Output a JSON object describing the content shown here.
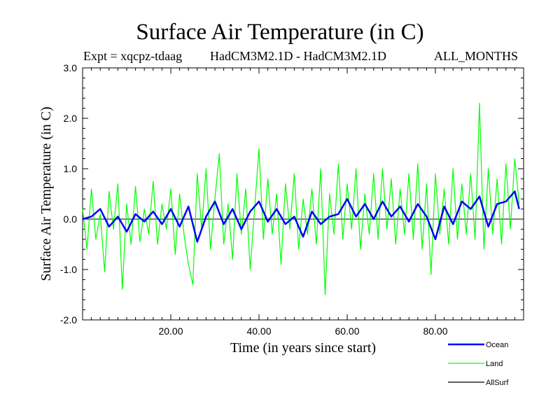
{
  "chart_data": {
    "type": "line",
    "title": "Surface Air Temperature (in C)",
    "subtitle_left": "Expt = xqcpz-tdaag",
    "subtitle_center": "HadCM3M2.1D - HadCM3M2.1D",
    "subtitle_right": "ALL_MONTHS",
    "xlabel": "Time (in years since start)",
    "ylabel": "Surface Air Temperature (in C)",
    "xlim": [
      0,
      100
    ],
    "ylim": [
      -2.0,
      3.0
    ],
    "xticks": [
      20,
      40,
      60,
      80
    ],
    "xtick_labels": [
      "20.00",
      "40.00",
      "60.00",
      "80.00"
    ],
    "yticks": [
      -2.0,
      -1.0,
      0.0,
      1.0,
      2.0,
      3.0
    ],
    "ytick_labels": [
      "-2.0",
      "-1.0",
      "0.0",
      "1.0",
      "2.0",
      "3.0"
    ],
    "zero_line": 0.0,
    "series": [
      {
        "name": "Land",
        "color": "#00ff00",
        "x": [
          0,
          1,
          2,
          3,
          4,
          5,
          6,
          7,
          8,
          9,
          10,
          11,
          12,
          13,
          14,
          15,
          16,
          17,
          18,
          19,
          20,
          21,
          22,
          23,
          24,
          25,
          26,
          27,
          28,
          29,
          30,
          31,
          32,
          33,
          34,
          35,
          36,
          37,
          38,
          39,
          40,
          41,
          42,
          43,
          44,
          45,
          46,
          47,
          48,
          49,
          50,
          51,
          52,
          53,
          54,
          55,
          56,
          57,
          58,
          59,
          60,
          61,
          62,
          63,
          64,
          65,
          66,
          67,
          68,
          69,
          70,
          71,
          72,
          73,
          74,
          75,
          76,
          77,
          78,
          79,
          80,
          81,
          82,
          83,
          84,
          85,
          86,
          87,
          88,
          89,
          90,
          91,
          92,
          93,
          94,
          95,
          96,
          97,
          98,
          99
        ],
        "values": [
          0.2,
          -0.6,
          0.6,
          -0.4,
          0.1,
          -1.05,
          0.55,
          -0.2,
          0.7,
          -1.4,
          0.3,
          -0.5,
          0.65,
          -0.45,
          0.2,
          -0.3,
          0.75,
          -0.5,
          0.3,
          -0.2,
          0.6,
          -0.7,
          0.5,
          -0.3,
          -0.9,
          -1.3,
          0.9,
          -0.2,
          1.0,
          -0.6,
          0.4,
          1.3,
          -0.5,
          0.3,
          -0.8,
          0.9,
          -0.3,
          0.6,
          -1.0,
          0.2,
          1.4,
          -0.4,
          0.8,
          -0.3,
          0.5,
          -0.9,
          0.7,
          -0.2,
          0.9,
          -0.6,
          0.4,
          -0.3,
          0.6,
          -0.5,
          1.0,
          -1.5,
          0.5,
          -0.3,
          1.1,
          -0.4,
          0.7,
          -0.2,
          1.0,
          -0.6,
          0.5,
          -0.3,
          0.9,
          -0.4,
          1.0,
          -0.2,
          0.8,
          -0.5,
          0.6,
          -0.3,
          0.9,
          -0.4,
          1.1,
          -0.6,
          0.7,
          -1.1,
          0.9,
          -0.3,
          0.6,
          -0.5,
          1.0,
          -0.4,
          0.7,
          -0.3,
          0.9,
          -0.4,
          2.3,
          -0.6,
          1.0,
          -0.3,
          0.8,
          -0.5,
          1.1,
          -0.2,
          1.2,
          0.3
        ]
      },
      {
        "name": "Ocean",
        "color": "#0000ff",
        "x": [
          0,
          2,
          4,
          6,
          8,
          10,
          12,
          14,
          16,
          18,
          20,
          22,
          24,
          26,
          28,
          30,
          32,
          34,
          36,
          38,
          40,
          42,
          44,
          46,
          48,
          50,
          52,
          54,
          56,
          58,
          60,
          62,
          64,
          66,
          68,
          70,
          72,
          74,
          76,
          78,
          80,
          82,
          84,
          86,
          88,
          90,
          92,
          94,
          96,
          98,
          99
        ],
        "values": [
          0.0,
          0.05,
          0.2,
          -0.15,
          0.05,
          -0.25,
          0.1,
          -0.05,
          0.15,
          -0.1,
          0.2,
          -0.15,
          0.25,
          -0.45,
          0.05,
          0.35,
          -0.1,
          0.2,
          -0.2,
          0.15,
          0.35,
          -0.05,
          0.2,
          -0.1,
          0.05,
          -0.35,
          0.15,
          -0.1,
          0.05,
          0.1,
          0.4,
          0.05,
          0.3,
          0.0,
          0.35,
          0.05,
          0.25,
          -0.05,
          0.3,
          0.05,
          -0.4,
          0.25,
          -0.1,
          0.35,
          0.2,
          0.45,
          -0.15,
          0.3,
          0.35,
          0.55,
          0.2
        ]
      },
      {
        "name": "AllSurf",
        "color": "#000000",
        "x": [],
        "values": []
      }
    ],
    "legend_position": "bottom-right"
  }
}
